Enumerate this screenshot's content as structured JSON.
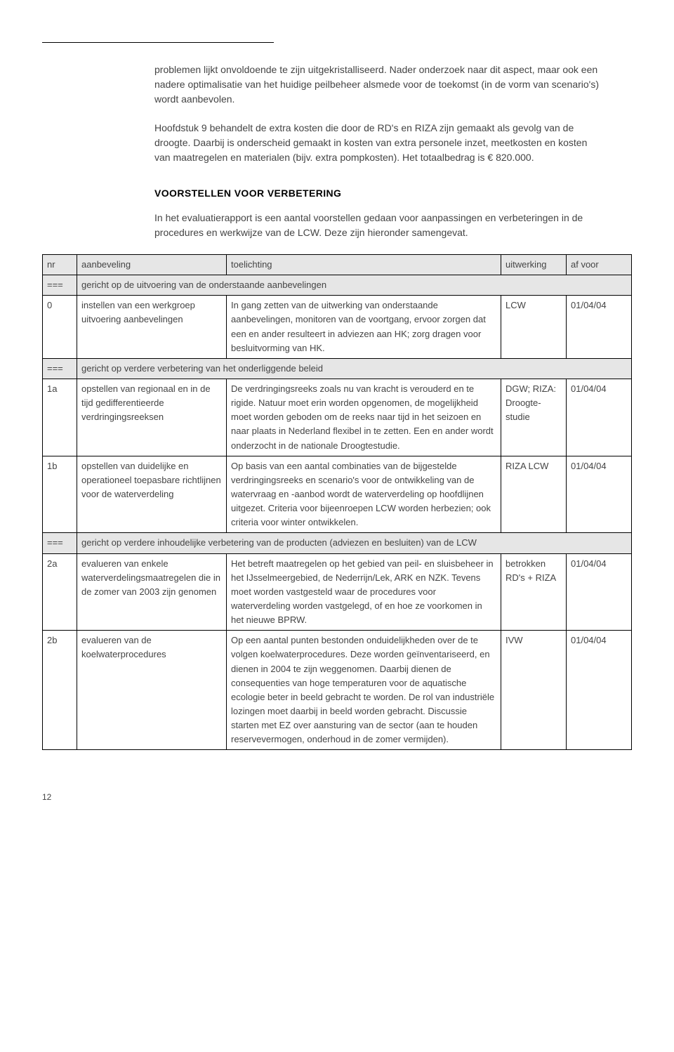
{
  "page_number": "12",
  "colors": {
    "header_bg": "#e6e6e6",
    "text": "#444444",
    "border": "#000000",
    "background": "#ffffff"
  },
  "typography": {
    "body_fontsize": 14,
    "table_fontsize": 13,
    "line_height": 1.5
  },
  "paragraphs": {
    "p1": "problemen lijkt onvoldoende te zijn uitgekristalliseerd. Nader onderzoek naar dit aspect, maar ook een nadere optimalisatie van het huidige peilbeheer alsmede voor de toekomst (in de vorm van scenario's) wordt aanbevolen.",
    "p2": "Hoofdstuk 9 behandelt de extra kosten die door de RD's en RIZA zijn gemaakt als gevolg van de droogte. Daarbij is onderscheid gemaakt in kosten van extra personele inzet, meetkosten en kosten van maatregelen en materialen (bijv. extra pompkosten). Het totaalbedrag is € 820.000.",
    "heading": "VOORSTELLEN VOOR VERBETERING",
    "p3": "In het evaluatierapport is een aantal voorstellen gedaan voor aanpassingen en verbeteringen in de procedures en werkwijze van de LCW. Deze zijn hieronder samengevat."
  },
  "table": {
    "headers": {
      "nr": "nr",
      "aanbeveling": "aanbeveling",
      "toelichting": "toelichting",
      "uitwerking": "uitwerking",
      "afvoor": "af voor"
    },
    "groups": {
      "g1": "gericht op de uitvoering van de onderstaande aanbevelingen",
      "g2": "gericht op verdere verbetering van het onderliggende beleid",
      "g3": "gericht op verdere inhoudelijke verbetering van de producten (adviezen en besluiten) van de LCW"
    },
    "group_marker": "===",
    "rows": {
      "r0": {
        "nr": "0",
        "aanb": "instellen van een werkgroep uitvoering aanbevelingen",
        "toel": "In gang zetten van de uitwerking van onderstaande aanbevelingen, monitoren van de voortgang, ervoor zorgen dat een en ander resulteert in adviezen aan HK; zorg dragen voor besluitvorming van HK.",
        "uit": "LCW",
        "af": "01/04/04"
      },
      "r1a": {
        "nr": "1a",
        "aanb": "opstellen van regionaal en in de tijd gedifferentieerde verdringingsreeksen",
        "toel": "De verdringingsreeks zoals nu van kracht is verouderd en te rigide. Natuur moet erin worden opgenomen, de mogelijkheid moet worden geboden om de reeks naar tijd in het seizoen en naar plaats in Nederland flexibel in te zetten. Een en ander wordt onderzocht in de nationale Droogtestudie.",
        "uit": "DGW; RIZA: Droogte-studie",
        "af": "01/04/04"
      },
      "r1b": {
        "nr": "1b",
        "aanb": "opstellen van duidelijke en operationeel toepasbare richtlijnen voor de waterverdeling",
        "toel": "Op basis van een aantal combinaties van de bijgestelde verdringingsreeks en scenario's voor de ontwikkeling van de watervraag en -aanbod wordt de waterverdeling op hoofdlijnen uitgezet. Criteria voor bijeenroepen LCW worden herbezien; ook criteria voor winter ontwikkelen.",
        "uit": "RIZA LCW",
        "af": "01/04/04"
      },
      "r2a": {
        "nr": "2a",
        "aanb": "evalueren van enkele waterverdelingsmaatregelen die in de zomer van 2003 zijn genomen",
        "toel": "Het betreft maatregelen op het gebied van peil- en sluisbeheer in het IJsselmeergebied, de Nederrijn/Lek, ARK en NZK. Tevens moet worden vastgesteld waar de procedures voor waterverdeling worden vastgelegd, of en hoe ze voorkomen in het nieuwe BPRW.",
        "uit": "betrokken RD's + RIZA",
        "af": "01/04/04"
      },
      "r2b": {
        "nr": "2b",
        "aanb": "evalueren van de koelwaterprocedures",
        "toel": "Op een aantal punten bestonden onduidelijkheden over de te volgen koelwaterprocedures. Deze worden geïnventariseerd, en dienen in 2004 te zijn weggenomen. Daarbij dienen de consequenties van hoge temperaturen voor de aquatische ecologie beter in beeld gebracht te worden. De rol van industriële lozingen moet daarbij in beeld worden gebracht. Discussie starten met EZ over aansturing van de sector (aan te houden reservevermogen, onderhoud in de zomer vermijden).",
        "uit": "IVW",
        "af": "01/04/04"
      }
    }
  }
}
